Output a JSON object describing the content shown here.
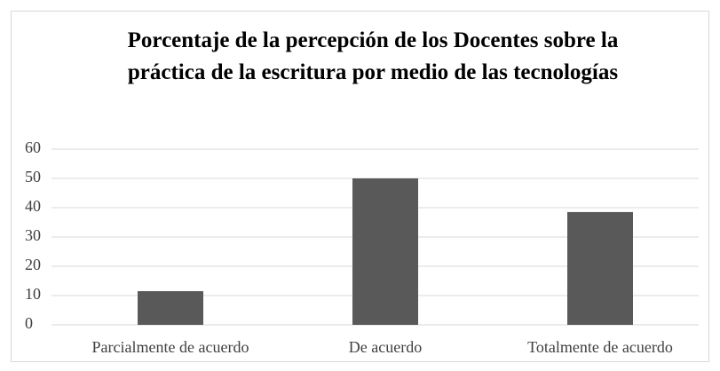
{
  "chart_data": {
    "type": "bar",
    "title": "Porcentaje de la percepción de los Docentes sobre la práctica de la escritura por medio de las tecnologías",
    "categories": [
      "Parcialmente de acuerdo",
      "De acuerdo",
      "Totalmente de acuerdo"
    ],
    "values": [
      11.5,
      50,
      38.5
    ],
    "color": "#595959",
    "ylim": [
      0,
      60
    ],
    "yticks": [
      0,
      10,
      20,
      30,
      40,
      50,
      60
    ],
    "grid": true
  }
}
